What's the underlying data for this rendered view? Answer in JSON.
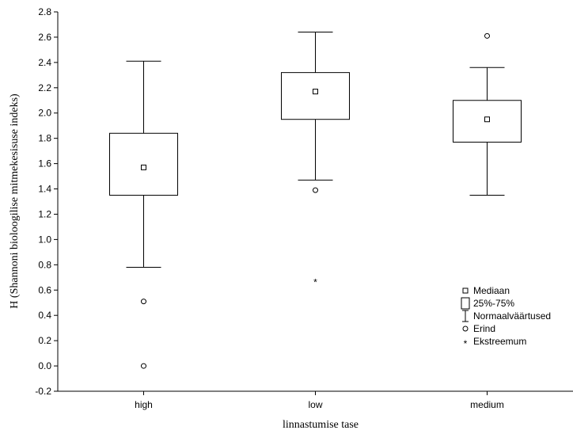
{
  "chart_data": {
    "type": "boxplot",
    "xlabel": "linnastumise tase",
    "ylabel": "H (Shannoni bioloogilise mitmekesisuse indeks)",
    "ylim": [
      -0.2,
      2.8
    ],
    "yticks": [
      -0.2,
      0.0,
      0.2,
      0.4,
      0.6,
      0.8,
      1.0,
      1.2,
      1.4,
      1.6,
      1.8,
      2.0,
      2.2,
      2.4,
      2.6,
      2.8
    ],
    "ytick_labels": [
      "-0.2",
      "0.0",
      "0.2",
      "0.4",
      "0.6",
      "0.8",
      "1.0",
      "1.2",
      "1.4",
      "1.6",
      "1.8",
      "2.0",
      "2.2",
      "2.4",
      "2.6",
      "2.8"
    ],
    "categories": [
      "high",
      "low",
      "medium"
    ],
    "boxes": [
      {
        "category": "high",
        "median": 1.57,
        "q1": 1.35,
        "q3": 1.84,
        "whisker_low": 0.78,
        "whisker_high": 2.41,
        "outliers": [
          0.51,
          0.0
        ],
        "extremes": []
      },
      {
        "category": "low",
        "median": 2.17,
        "q1": 1.95,
        "q3": 2.32,
        "whisker_low": 1.47,
        "whisker_high": 2.64,
        "outliers": [
          1.39
        ],
        "extremes": [
          0.68
        ]
      },
      {
        "category": "medium",
        "median": 1.95,
        "q1": 1.77,
        "q3": 2.1,
        "whisker_low": 1.35,
        "whisker_high": 2.36,
        "outliers": [
          2.61
        ],
        "extremes": []
      }
    ],
    "grid": false,
    "legend_position": "right",
    "legend": [
      {
        "symbol": "small-square",
        "label": "Mediaan"
      },
      {
        "symbol": "box",
        "label": "25%-75%"
      },
      {
        "symbol": "whisker",
        "label": "Normaalväärtused"
      },
      {
        "symbol": "circle",
        "label": "Erind"
      },
      {
        "symbol": "asterisk",
        "label": "Ekstreemum"
      }
    ]
  }
}
